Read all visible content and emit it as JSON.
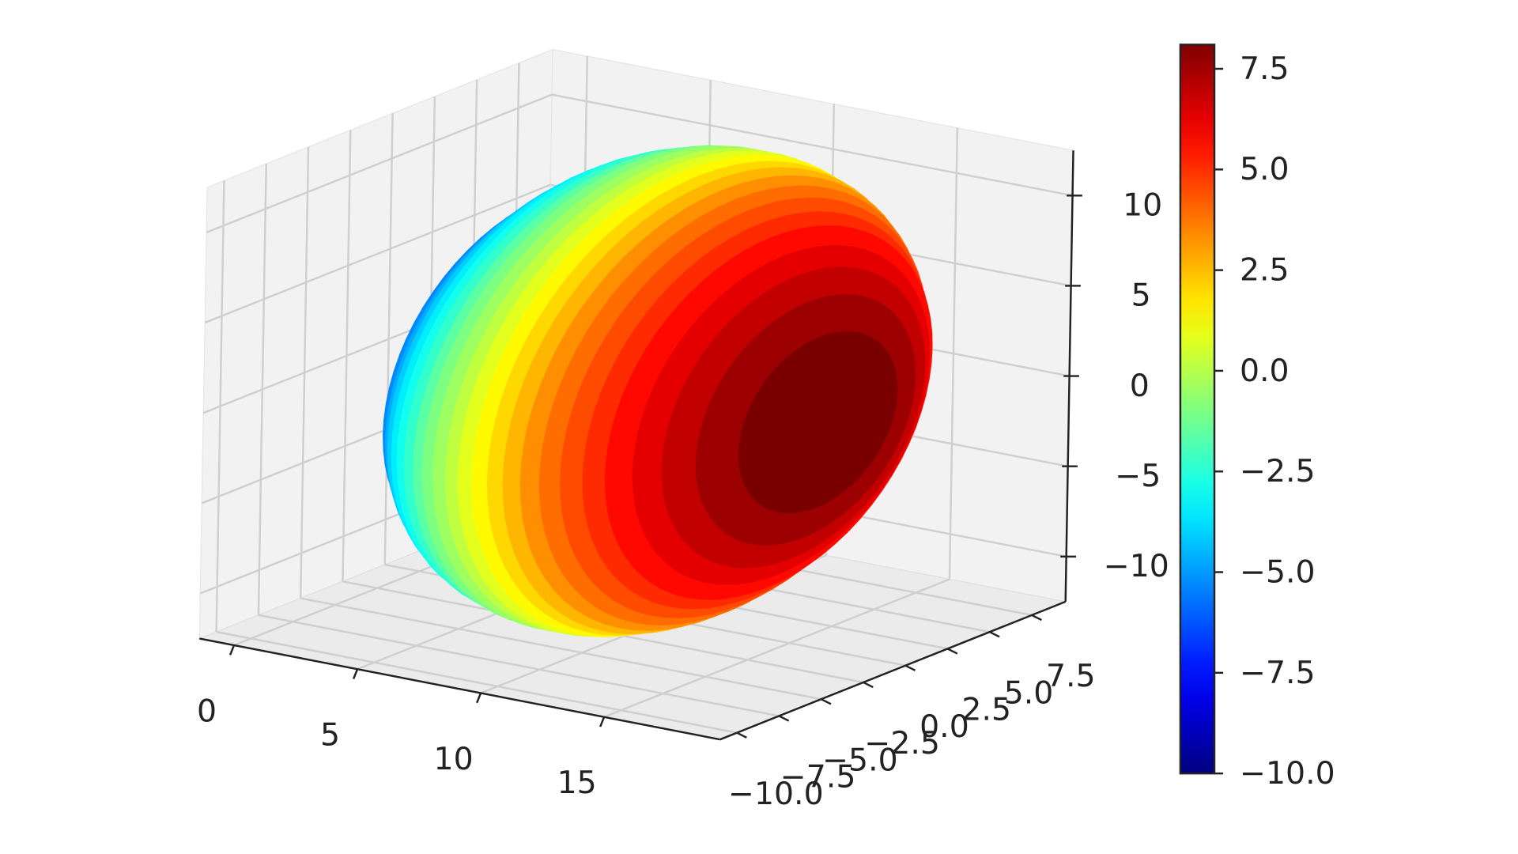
{
  "chart_data": {
    "type": "surface",
    "xlim": [
      -1.4,
      19.7
    ],
    "ylim": [
      -11,
      9.5
    ],
    "zlim": [
      -12.5,
      12.5
    ],
    "xticks": [
      0,
      5,
      10,
      15
    ],
    "yticks": [
      {
        "value": -10,
        "label": "−10.0"
      },
      {
        "value": -7.5,
        "label": "−7.5"
      },
      {
        "value": -5,
        "label": "−5.0"
      },
      {
        "value": -2.5,
        "label": "−2.5"
      },
      {
        "value": 0,
        "label": "0.0"
      },
      2.5,
      {
        "value": 5,
        "label": "5.0"
      },
      7.5
    ],
    "zticks": [
      {
        "value": -10,
        "label": "−10"
      },
      {
        "value": -5,
        "label": "−5"
      },
      0,
      5,
      10
    ],
    "grid": true,
    "colormap": "jet",
    "colorbar": {
      "clim": [
        -10,
        8.1
      ],
      "ticks": [
        {
          "value": -10,
          "label": "−10.0"
        },
        {
          "value": -7.5,
          "label": "−7.5"
        },
        {
          "value": -5,
          "label": "−5.0"
        },
        {
          "value": -2.5,
          "label": "−2.5"
        },
        {
          "value": 0,
          "label": "0.0"
        },
        2.5,
        {
          "value": 5,
          "label": "5.0"
        },
        7.5
      ]
    },
    "surface": {
      "x": [
        3,
        3.5,
        4,
        4.5,
        5,
        5.5,
        6,
        6.5,
        7,
        7.5,
        8,
        8.5,
        9,
        9.5,
        10,
        10.5,
        11,
        11.5,
        12,
        12.5,
        13,
        13.5,
        14,
        14.5,
        15,
        15.5,
        16
      ],
      "radius": [
        4.7,
        6.5,
        7.8,
        8.8,
        9.7,
        10.3,
        10.9,
        11.4,
        11.8,
        12.1,
        12.3,
        12.5,
        12.6,
        12.6,
        12.6,
        12.5,
        12.3,
        12.1,
        11.8,
        11.4,
        10.9,
        10.3,
        9.7,
        8.8,
        7.8,
        6.5,
        4.7
      ],
      "values": [
        -7.8,
        -7.2,
        -6.6,
        -5.9,
        -5.3,
        -4.7,
        -4.1,
        -3.5,
        -2.9,
        -2.3,
        -1.6,
        -1.0,
        -0.4,
        0.2,
        0.8,
        1.4,
        2.0,
        2.6,
        3.3,
        3.9,
        4.5,
        5.1,
        5.7,
        6.3,
        6.9,
        7.6,
        8.2
      ]
    }
  }
}
